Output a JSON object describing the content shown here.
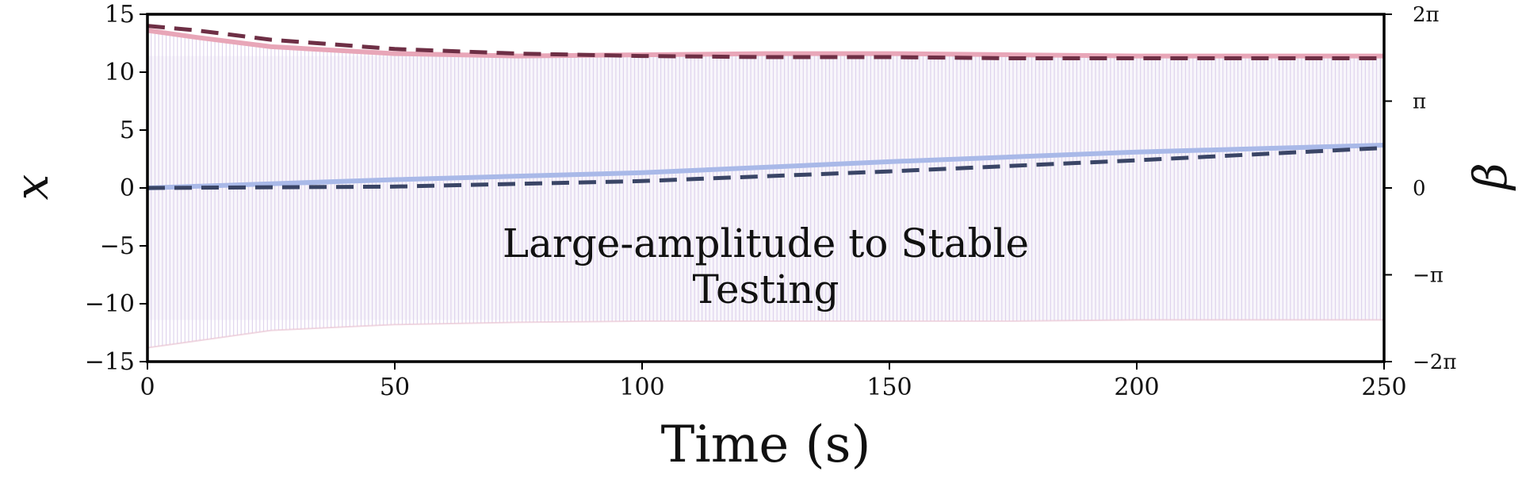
{
  "chart_data": {
    "type": "line",
    "xlabel": "Time (s)",
    "ylabel_left": "x",
    "ylabel_right": "β",
    "xlim": [
      0,
      250
    ],
    "ylim_left": [
      -15,
      15
    ],
    "ylim_right": [
      -6.2832,
      6.2832
    ],
    "x_ticks": [
      "0",
      "50",
      "100",
      "150",
      "200",
      "250"
    ],
    "y_ticks_left": [
      "15",
      "10",
      "5",
      "0",
      "−5",
      "−10",
      "−15"
    ],
    "y_ticks_right": [
      "2π",
      "π",
      "0",
      "−π",
      "−2π"
    ],
    "annotation": [
      "Large-amplitude to Stable",
      "Testing"
    ],
    "grid": false,
    "colors": {
      "oscillation": "#d9cdea",
      "upper_envelope": "#e8a6b8",
      "upper_model": "#6e2f45",
      "beta_solid": "#a9b9e8",
      "beta_model": "#3a4566"
    },
    "series": [
      {
        "axis": "left",
        "style": "dense-oscillation",
        "x": [
          0,
          25,
          50,
          75,
          100,
          125,
          150,
          175,
          200,
          225,
          250
        ],
        "upper": [
          13.8,
          12.2,
          11.6,
          11.5,
          11.5,
          11.6,
          11.6,
          11.5,
          11.4,
          11.4,
          11.4
        ],
        "lower": [
          -13.8,
          -12.3,
          -11.8,
          -11.6,
          -11.5,
          -11.5,
          -11.5,
          -11.5,
          -11.4,
          -11.4,
          -11.4
        ]
      },
      {
        "axis": "left",
        "style": "solid",
        "x": [
          0,
          10,
          25,
          50,
          75,
          100,
          125,
          150,
          175,
          200,
          225,
          250
        ],
        "y": [
          13.6,
          13.0,
          12.2,
          11.6,
          11.4,
          11.5,
          11.6,
          11.6,
          11.5,
          11.4,
          11.4,
          11.4
        ]
      },
      {
        "axis": "left",
        "style": "dashed",
        "x": [
          0,
          10,
          25,
          50,
          75,
          100,
          125,
          150,
          175,
          200,
          225,
          250
        ],
        "y": [
          14.0,
          13.6,
          12.8,
          12.0,
          11.6,
          11.4,
          11.3,
          11.3,
          11.2,
          11.2,
          11.2,
          11.2
        ]
      },
      {
        "axis": "right",
        "style": "solid",
        "x": [
          0,
          50,
          100,
          150,
          200,
          250
        ],
        "y": [
          0.0,
          0.3,
          0.55,
          0.95,
          1.3,
          1.55
        ]
      },
      {
        "axis": "right",
        "style": "dashed",
        "x": [
          0,
          50,
          100,
          150,
          200,
          250
        ],
        "y": [
          0.0,
          0.05,
          0.25,
          0.6,
          1.0,
          1.45
        ]
      }
    ]
  }
}
